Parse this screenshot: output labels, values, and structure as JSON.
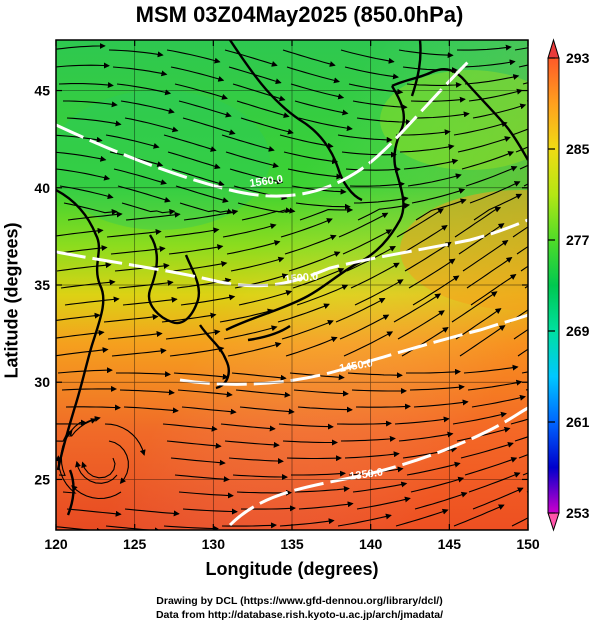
{
  "title": "MSM 03Z04May2025 (850.0hPa)",
  "x_axis": {
    "label": "Longitude (degrees)",
    "ticks": [
      "120",
      "125",
      "130",
      "135",
      "140",
      "145",
      "150"
    ],
    "range": [
      120,
      150
    ]
  },
  "y_axis": {
    "label": "Latitude  (degrees)",
    "ticks": [
      "25",
      "30",
      "35",
      "40",
      "45"
    ],
    "range": [
      22.4,
      47.6
    ]
  },
  "colorbar": {
    "ticks": [
      "293",
      "285",
      "277",
      "269",
      "261",
      "253"
    ],
    "range": [
      253,
      293
    ],
    "colors": [
      "#ff55aa",
      "#cc00cc",
      "#0000cc",
      "#0066ff",
      "#00c8ff",
      "#00e0a0",
      "#00c850",
      "#50dc28",
      "#b4e614",
      "#f0dc14",
      "#ffa01e",
      "#ff5a28",
      "#e02020"
    ]
  },
  "contours": {
    "labels": [
      "1560.0",
      "1500.0",
      "1450.0",
      "1350.0"
    ],
    "color": "#ffffff"
  },
  "credits": {
    "line1": "Drawing by DCL (https://www.gfd-dennou.org/library/dcl/)",
    "line2": "Data from http://database.rish.kyoto-u.ac.jp/arch/jmadata/"
  }
}
